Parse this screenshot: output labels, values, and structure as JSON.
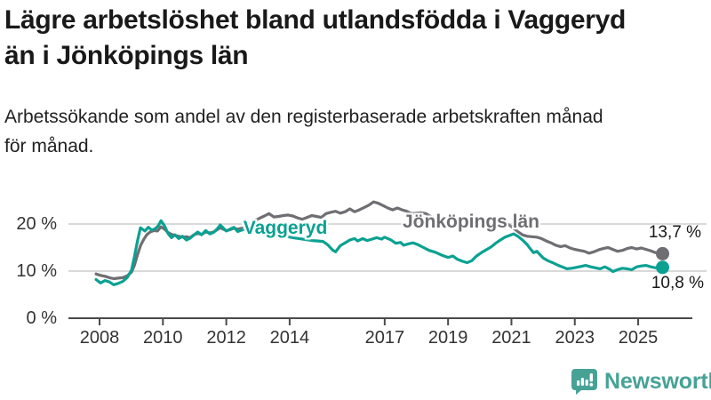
{
  "header": {
    "title_line1": "Lägre arbetslöshet bland utlandsfödda i Vaggeryd",
    "title_line2": "än i Jönköpings län",
    "subtitle_line1": "Arbetssökande som andel av den registerbaserade arbetskraften månad",
    "subtitle_line2": "för månad."
  },
  "branding": {
    "logo_text": "Newsworthy",
    "logo_icon": "bar-chart-speech-bubble-icon",
    "logo_color": "#47a296"
  },
  "chart_data": {
    "type": "line",
    "unit": "%",
    "grid_on": true,
    "legend_position": "inline-series-labels",
    "colors": {
      "grid": "#d9d9d9",
      "axis": "#4a4a4a",
      "tick_text": "#333333"
    },
    "x_axis": {
      "ticks": [
        "2008",
        "2010",
        "2012",
        "2014",
        "2017",
        "2019",
        "2021",
        "2023",
        "2025"
      ],
      "tick_years": [
        2008,
        2010,
        2012,
        2014,
        2017,
        2019,
        2021,
        2023,
        2025
      ],
      "range": [
        2007.8,
        2026.2
      ]
    },
    "y_axis": {
      "ticks": [
        {
          "label": "0 %",
          "value": 0
        },
        {
          "label": "10 %",
          "value": 10
        },
        {
          "label": "20 %",
          "value": 20
        }
      ],
      "range": [
        0,
        26
      ]
    },
    "series": [
      {
        "name": "Vaggeryd",
        "color": "#0aa192",
        "end_label": "10,8 %",
        "end_value": 10.8,
        "points": [
          [
            2007.89,
            8.2
          ],
          [
            2008.03,
            7.5
          ],
          [
            2008.17,
            8.0
          ],
          [
            2008.31,
            7.7
          ],
          [
            2008.45,
            7.1
          ],
          [
            2008.59,
            7.4
          ],
          [
            2008.73,
            7.8
          ],
          [
            2008.87,
            8.6
          ],
          [
            2009.01,
            10.2
          ],
          [
            2009.1,
            13.0
          ],
          [
            2009.2,
            16.5
          ],
          [
            2009.29,
            19.2
          ],
          [
            2009.43,
            18.5
          ],
          [
            2009.54,
            19.3
          ],
          [
            2009.65,
            18.7
          ],
          [
            2009.76,
            19.0
          ],
          [
            2009.85,
            19.6
          ],
          [
            2009.94,
            20.7
          ],
          [
            2010.05,
            19.6
          ],
          [
            2010.16,
            18.0
          ],
          [
            2010.27,
            17.1
          ],
          [
            2010.38,
            17.7
          ],
          [
            2010.5,
            16.9
          ],
          [
            2010.62,
            17.4
          ],
          [
            2010.74,
            16.6
          ],
          [
            2010.86,
            17.0
          ],
          [
            2010.97,
            17.6
          ],
          [
            2011.1,
            18.3
          ],
          [
            2011.22,
            17.7
          ],
          [
            2011.35,
            18.6
          ],
          [
            2011.48,
            17.9
          ],
          [
            2011.6,
            18.2
          ],
          [
            2011.72,
            19.0
          ],
          [
            2011.81,
            19.8
          ],
          [
            2011.9,
            19.2
          ],
          [
            2012.0,
            18.5
          ],
          [
            2012.12,
            18.9
          ],
          [
            2012.24,
            19.3
          ],
          [
            2012.36,
            18.4
          ],
          [
            2012.48,
            18.7
          ],
          [
            2012.6,
            18.9
          ],
          [
            2012.75,
            18.5
          ],
          [
            2012.9,
            18.2
          ],
          [
            2013.1,
            17.9
          ],
          [
            2013.3,
            17.7
          ],
          [
            2013.5,
            17.4
          ],
          [
            2013.7,
            17.2
          ],
          [
            2013.9,
            17.4
          ],
          [
            2014.1,
            17.1
          ],
          [
            2014.3,
            16.9
          ],
          [
            2014.5,
            16.7
          ],
          [
            2014.7,
            16.5
          ],
          [
            2014.9,
            16.4
          ],
          [
            2015.05,
            16.3
          ],
          [
            2015.2,
            15.6
          ],
          [
            2015.35,
            14.5
          ],
          [
            2015.45,
            14.1
          ],
          [
            2015.6,
            15.4
          ],
          [
            2015.75,
            16.0
          ],
          [
            2015.9,
            16.6
          ],
          [
            2016.05,
            16.9
          ],
          [
            2016.15,
            16.4
          ],
          [
            2016.3,
            16.9
          ],
          [
            2016.45,
            16.5
          ],
          [
            2016.6,
            16.8
          ],
          [
            2016.75,
            17.1
          ],
          [
            2016.9,
            16.8
          ],
          [
            2017.0,
            17.2
          ],
          [
            2017.1,
            16.9
          ],
          [
            2017.2,
            16.6
          ],
          [
            2017.35,
            15.9
          ],
          [
            2017.5,
            16.1
          ],
          [
            2017.6,
            15.5
          ],
          [
            2017.75,
            15.8
          ],
          [
            2017.9,
            16.0
          ],
          [
            2018.05,
            15.6
          ],
          [
            2018.2,
            15.1
          ],
          [
            2018.4,
            14.4
          ],
          [
            2018.6,
            14.0
          ],
          [
            2018.8,
            13.4
          ],
          [
            2019.0,
            12.9
          ],
          [
            2019.15,
            13.2
          ],
          [
            2019.3,
            12.5
          ],
          [
            2019.45,
            12.1
          ],
          [
            2019.6,
            11.8
          ],
          [
            2019.75,
            12.2
          ],
          [
            2019.9,
            13.2
          ],
          [
            2020.05,
            13.9
          ],
          [
            2020.2,
            14.5
          ],
          [
            2020.35,
            15.1
          ],
          [
            2020.5,
            15.9
          ],
          [
            2020.65,
            16.6
          ],
          [
            2020.8,
            17.2
          ],
          [
            2020.95,
            17.6
          ],
          [
            2021.07,
            17.9
          ],
          [
            2021.2,
            17.4
          ],
          [
            2021.35,
            16.6
          ],
          [
            2021.5,
            15.6
          ],
          [
            2021.6,
            14.7
          ],
          [
            2021.7,
            13.9
          ],
          [
            2021.8,
            14.2
          ],
          [
            2021.9,
            13.5
          ],
          [
            2022.0,
            12.8
          ],
          [
            2022.15,
            12.2
          ],
          [
            2022.3,
            11.8
          ],
          [
            2022.45,
            11.3
          ],
          [
            2022.6,
            10.9
          ],
          [
            2022.75,
            10.5
          ],
          [
            2022.9,
            10.6
          ],
          [
            2023.05,
            10.8
          ],
          [
            2023.2,
            11.0
          ],
          [
            2023.35,
            11.2
          ],
          [
            2023.5,
            10.9
          ],
          [
            2023.65,
            10.7
          ],
          [
            2023.8,
            10.5
          ],
          [
            2023.95,
            10.9
          ],
          [
            2024.1,
            10.4
          ],
          [
            2024.2,
            9.9
          ],
          [
            2024.35,
            10.3
          ],
          [
            2024.5,
            10.6
          ],
          [
            2024.65,
            10.5
          ],
          [
            2024.8,
            10.3
          ],
          [
            2024.95,
            10.9
          ],
          [
            2025.1,
            11.1
          ],
          [
            2025.25,
            11.2
          ],
          [
            2025.4,
            10.9
          ],
          [
            2025.55,
            10.7
          ],
          [
            2025.77,
            10.8
          ]
        ]
      },
      {
        "name": "Jönköpings län",
        "color": "#6e6e73",
        "end_label": "13,7 %",
        "end_value": 13.7,
        "points": [
          [
            2007.89,
            9.4
          ],
          [
            2008.03,
            9.1
          ],
          [
            2008.17,
            8.9
          ],
          [
            2008.31,
            8.6
          ],
          [
            2008.45,
            8.4
          ],
          [
            2008.59,
            8.5
          ],
          [
            2008.73,
            8.6
          ],
          [
            2008.87,
            9.0
          ],
          [
            2009.01,
            9.8
          ],
          [
            2009.1,
            11.2
          ],
          [
            2009.2,
            13.5
          ],
          [
            2009.3,
            15.5
          ],
          [
            2009.4,
            16.8
          ],
          [
            2009.5,
            17.8
          ],
          [
            2009.6,
            18.3
          ],
          [
            2009.72,
            18.6
          ],
          [
            2009.83,
            18.5
          ],
          [
            2009.94,
            19.4
          ],
          [
            2010.05,
            18.9
          ],
          [
            2010.16,
            18.2
          ],
          [
            2010.27,
            17.8
          ],
          [
            2010.38,
            17.6
          ],
          [
            2010.5,
            17.4
          ],
          [
            2010.62,
            17.2
          ],
          [
            2010.74,
            17.3
          ],
          [
            2010.86,
            17.1
          ],
          [
            2010.97,
            17.7
          ],
          [
            2011.1,
            18.0
          ],
          [
            2011.22,
            17.8
          ],
          [
            2011.35,
            18.3
          ],
          [
            2011.48,
            18.1
          ],
          [
            2011.6,
            18.3
          ],
          [
            2011.72,
            18.8
          ],
          [
            2011.81,
            19.2
          ],
          [
            2011.9,
            18.9
          ],
          [
            2012.0,
            18.6
          ],
          [
            2012.12,
            18.8
          ],
          [
            2012.24,
            19.1
          ],
          [
            2012.36,
            18.9
          ],
          [
            2012.48,
            19.1
          ],
          [
            2012.6,
            19.4
          ],
          [
            2012.75,
            20.0
          ],
          [
            2012.9,
            20.7
          ],
          [
            2013.05,
            21.2
          ],
          [
            2013.2,
            21.7
          ],
          [
            2013.35,
            22.2
          ],
          [
            2013.5,
            21.5
          ],
          [
            2013.65,
            21.6
          ],
          [
            2013.8,
            21.8
          ],
          [
            2013.95,
            21.9
          ],
          [
            2014.1,
            21.7
          ],
          [
            2014.25,
            21.3
          ],
          [
            2014.4,
            21.0
          ],
          [
            2014.55,
            21.4
          ],
          [
            2014.7,
            21.8
          ],
          [
            2014.85,
            21.6
          ],
          [
            2015.0,
            21.4
          ],
          [
            2015.15,
            22.2
          ],
          [
            2015.3,
            22.5
          ],
          [
            2015.45,
            22.7
          ],
          [
            2015.6,
            22.3
          ],
          [
            2015.75,
            22.6
          ],
          [
            2015.9,
            23.2
          ],
          [
            2016.05,
            22.6
          ],
          [
            2016.2,
            23.0
          ],
          [
            2016.35,
            23.5
          ],
          [
            2016.5,
            24.0
          ],
          [
            2016.65,
            24.7
          ],
          [
            2016.8,
            24.4
          ],
          [
            2016.95,
            23.9
          ],
          [
            2017.1,
            23.4
          ],
          [
            2017.25,
            23.0
          ],
          [
            2017.4,
            23.4
          ],
          [
            2017.55,
            23.0
          ],
          [
            2017.7,
            22.7
          ],
          [
            2017.85,
            22.2
          ],
          [
            2018.0,
            22.3
          ],
          [
            2018.15,
            22.4
          ],
          [
            2018.3,
            22.2
          ],
          [
            2018.5,
            21.4
          ],
          [
            2018.7,
            20.6
          ],
          [
            2018.9,
            20.0
          ],
          [
            2019.1,
            19.7
          ],
          [
            2019.3,
            19.4
          ],
          [
            2019.5,
            19.2
          ],
          [
            2019.7,
            19.3
          ],
          [
            2019.9,
            19.6
          ],
          [
            2020.1,
            20.0
          ],
          [
            2020.3,
            20.4
          ],
          [
            2020.5,
            20.7
          ],
          [
            2020.7,
            20.4
          ],
          [
            2020.9,
            19.9
          ],
          [
            2021.05,
            19.2
          ],
          [
            2021.2,
            18.4
          ],
          [
            2021.35,
            17.7
          ],
          [
            2021.5,
            17.4
          ],
          [
            2021.65,
            17.3
          ],
          [
            2021.8,
            17.2
          ],
          [
            2021.95,
            16.9
          ],
          [
            2022.1,
            16.4
          ],
          [
            2022.25,
            16.0
          ],
          [
            2022.4,
            15.5
          ],
          [
            2022.55,
            15.2
          ],
          [
            2022.7,
            15.4
          ],
          [
            2022.85,
            14.9
          ],
          [
            2023.0,
            14.6
          ],
          [
            2023.15,
            14.4
          ],
          [
            2023.3,
            14.2
          ],
          [
            2023.45,
            13.8
          ],
          [
            2023.6,
            14.1
          ],
          [
            2023.75,
            14.5
          ],
          [
            2023.9,
            14.8
          ],
          [
            2024.05,
            15.0
          ],
          [
            2024.2,
            14.6
          ],
          [
            2024.35,
            14.2
          ],
          [
            2024.5,
            14.4
          ],
          [
            2024.65,
            14.8
          ],
          [
            2024.8,
            15.0
          ],
          [
            2024.95,
            14.7
          ],
          [
            2025.1,
            14.9
          ],
          [
            2025.25,
            14.6
          ],
          [
            2025.4,
            14.3
          ],
          [
            2025.55,
            13.9
          ],
          [
            2025.77,
            13.7
          ]
        ]
      }
    ]
  }
}
